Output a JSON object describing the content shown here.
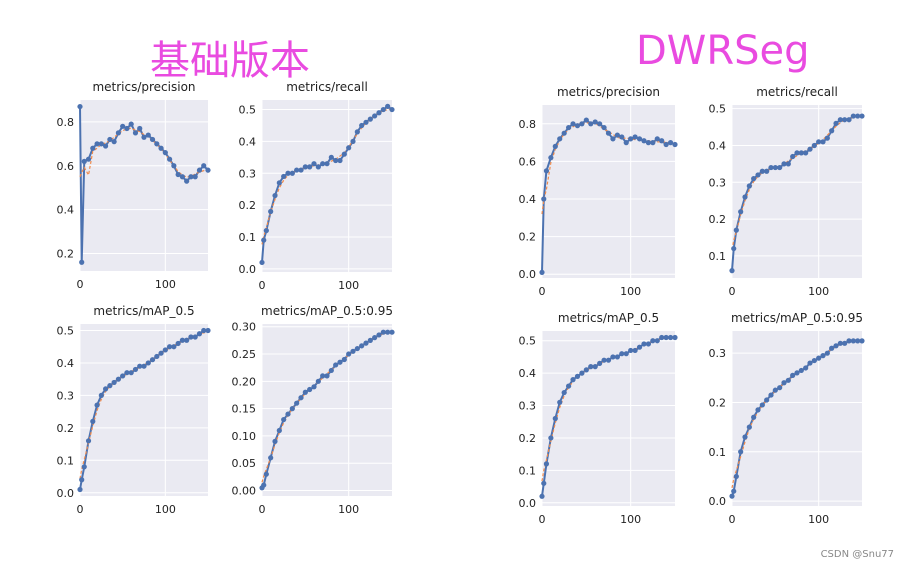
{
  "groups": [
    {
      "title": "基础版本"
    },
    {
      "title": "DWRSeg"
    }
  ],
  "watermark": "CSDN @Snu77",
  "colors": {
    "background": "#eaeaf2",
    "grid": "#ffffff",
    "series": "#4c72b0",
    "smooth": "#f08a4b",
    "title_accent": "#e94be0"
  },
  "chart_data": [
    {
      "type": "line",
      "group": "基础版本",
      "title": "metrics/precision",
      "xlim": [
        0,
        150
      ],
      "ylim": [
        0.12,
        0.9
      ],
      "xticks": [
        0,
        100
      ],
      "yticks": [
        0.2,
        0.4,
        0.6,
        0.8
      ],
      "ytick_labels": [
        "0.2",
        "0.4",
        "0.6",
        "0.8"
      ],
      "series": [
        {
          "x": [
            0,
            2,
            5,
            10,
            15,
            20,
            25,
            30,
            35,
            40,
            45,
            50,
            55,
            60,
            65,
            70,
            75,
            80,
            85,
            90,
            95,
            100,
            105,
            110,
            115,
            120,
            125,
            130,
            135,
            140,
            145,
            150
          ],
          "y": [
            0.87,
            0.16,
            0.62,
            0.63,
            0.68,
            0.7,
            0.7,
            0.69,
            0.72,
            0.71,
            0.75,
            0.78,
            0.77,
            0.79,
            0.75,
            0.77,
            0.73,
            0.74,
            0.72,
            0.7,
            0.68,
            0.66,
            0.63,
            0.6,
            0.56,
            0.55,
            0.53,
            0.55,
            0.55,
            0.58,
            0.6,
            0.58
          ]
        }
      ]
    },
    {
      "type": "line",
      "group": "基础版本",
      "title": "metrics/recall",
      "xlim": [
        0,
        150
      ],
      "ylim": [
        -0.01,
        0.53
      ],
      "xticks": [
        0,
        100
      ],
      "yticks": [
        0,
        0.1,
        0.2,
        0.3,
        0.4,
        0.5
      ],
      "ytick_labels": [
        "0.0",
        "0.1",
        "0.2",
        "0.3",
        "0.4",
        "0.5"
      ],
      "series": [
        {
          "x": [
            0,
            2,
            5,
            10,
            15,
            20,
            25,
            30,
            35,
            40,
            45,
            50,
            55,
            60,
            65,
            70,
            75,
            80,
            85,
            90,
            95,
            100,
            105,
            110,
            115,
            120,
            125,
            130,
            135,
            140,
            145,
            150
          ],
          "y": [
            0.02,
            0.09,
            0.12,
            0.18,
            0.23,
            0.27,
            0.29,
            0.3,
            0.3,
            0.31,
            0.31,
            0.32,
            0.32,
            0.33,
            0.32,
            0.33,
            0.33,
            0.35,
            0.34,
            0.34,
            0.36,
            0.38,
            0.4,
            0.43,
            0.45,
            0.46,
            0.47,
            0.48,
            0.49,
            0.5,
            0.51,
            0.5
          ]
        }
      ]
    },
    {
      "type": "line",
      "group": "基础版本",
      "title": "metrics/mAP_0.5",
      "xlim": [
        0,
        150
      ],
      "ylim": [
        -0.01,
        0.52
      ],
      "xticks": [
        0,
        100
      ],
      "yticks": [
        0,
        0.1,
        0.2,
        0.3,
        0.4,
        0.5
      ],
      "ytick_labels": [
        "0.0",
        "0.1",
        "0.2",
        "0.3",
        "0.4",
        "0.5"
      ],
      "series": [
        {
          "x": [
            0,
            2,
            5,
            10,
            15,
            20,
            25,
            30,
            35,
            40,
            45,
            50,
            55,
            60,
            65,
            70,
            75,
            80,
            85,
            90,
            95,
            100,
            105,
            110,
            115,
            120,
            125,
            130,
            135,
            140,
            145,
            150
          ],
          "y": [
            0.01,
            0.04,
            0.08,
            0.16,
            0.22,
            0.27,
            0.3,
            0.32,
            0.33,
            0.34,
            0.35,
            0.36,
            0.37,
            0.37,
            0.38,
            0.39,
            0.39,
            0.4,
            0.41,
            0.42,
            0.43,
            0.44,
            0.45,
            0.45,
            0.46,
            0.47,
            0.47,
            0.48,
            0.48,
            0.49,
            0.5,
            0.5
          ]
        }
      ]
    },
    {
      "type": "line",
      "group": "基础版本",
      "title": "metrics/mAP_0.5:0.95",
      "xlim": [
        0,
        150
      ],
      "ylim": [
        -0.01,
        0.305
      ],
      "xticks": [
        0,
        100
      ],
      "yticks": [
        0,
        0.05,
        0.1,
        0.15,
        0.2,
        0.25,
        0.3
      ],
      "ytick_labels": [
        "0.00",
        "0.05",
        "0.10",
        "0.15",
        "0.20",
        "0.25",
        "0.30"
      ],
      "series": [
        {
          "x": [
            0,
            2,
            5,
            10,
            15,
            20,
            25,
            30,
            35,
            40,
            45,
            50,
            55,
            60,
            65,
            70,
            75,
            80,
            85,
            90,
            95,
            100,
            105,
            110,
            115,
            120,
            125,
            130,
            135,
            140,
            145,
            150
          ],
          "y": [
            0.005,
            0.01,
            0.03,
            0.06,
            0.09,
            0.11,
            0.13,
            0.14,
            0.15,
            0.16,
            0.17,
            0.18,
            0.185,
            0.19,
            0.2,
            0.21,
            0.21,
            0.22,
            0.23,
            0.235,
            0.24,
            0.25,
            0.255,
            0.26,
            0.265,
            0.27,
            0.275,
            0.28,
            0.285,
            0.29,
            0.29,
            0.29
          ]
        }
      ]
    },
    {
      "type": "line",
      "group": "DWRSeg",
      "title": "metrics/precision",
      "xlim": [
        0,
        150
      ],
      "ylim": [
        -0.02,
        0.9
      ],
      "xticks": [
        0,
        100
      ],
      "yticks": [
        0,
        0.2,
        0.4,
        0.6,
        0.8
      ],
      "ytick_labels": [
        "0.0",
        "0.2",
        "0.4",
        "0.6",
        "0.8"
      ],
      "series": [
        {
          "x": [
            0,
            2,
            5,
            10,
            15,
            20,
            25,
            30,
            35,
            40,
            45,
            50,
            55,
            60,
            65,
            70,
            75,
            80,
            85,
            90,
            95,
            100,
            105,
            110,
            115,
            120,
            125,
            130,
            135,
            140,
            145,
            150
          ],
          "y": [
            0.01,
            0.4,
            0.55,
            0.62,
            0.68,
            0.72,
            0.75,
            0.78,
            0.8,
            0.79,
            0.8,
            0.82,
            0.8,
            0.81,
            0.8,
            0.78,
            0.75,
            0.72,
            0.74,
            0.73,
            0.7,
            0.72,
            0.73,
            0.72,
            0.71,
            0.7,
            0.7,
            0.72,
            0.71,
            0.69,
            0.7,
            0.69
          ]
        }
      ]
    },
    {
      "type": "line",
      "group": "DWRSeg",
      "title": "metrics/recall",
      "xlim": [
        0,
        150
      ],
      "ylim": [
        0.04,
        0.51
      ],
      "xticks": [
        0,
        100
      ],
      "yticks": [
        0.1,
        0.2,
        0.3,
        0.4,
        0.5
      ],
      "ytick_labels": [
        "0.1",
        "0.2",
        "0.3",
        "0.4",
        "0.5"
      ],
      "series": [
        {
          "x": [
            0,
            2,
            5,
            10,
            15,
            20,
            25,
            30,
            35,
            40,
            45,
            50,
            55,
            60,
            65,
            70,
            75,
            80,
            85,
            90,
            95,
            100,
            105,
            110,
            115,
            120,
            125,
            130,
            135,
            140,
            145,
            150
          ],
          "y": [
            0.06,
            0.12,
            0.17,
            0.22,
            0.26,
            0.29,
            0.31,
            0.32,
            0.33,
            0.33,
            0.34,
            0.34,
            0.34,
            0.35,
            0.35,
            0.37,
            0.38,
            0.38,
            0.38,
            0.39,
            0.4,
            0.41,
            0.41,
            0.42,
            0.44,
            0.46,
            0.47,
            0.47,
            0.47,
            0.48,
            0.48,
            0.48
          ]
        }
      ]
    },
    {
      "type": "line",
      "group": "DWRSeg",
      "title": "metrics/mAP_0.5",
      "xlim": [
        0,
        150
      ],
      "ylim": [
        -0.01,
        0.53
      ],
      "xticks": [
        0,
        100
      ],
      "yticks": [
        0,
        0.1,
        0.2,
        0.3,
        0.4,
        0.5
      ],
      "ytick_labels": [
        "0.0",
        "0.1",
        "0.2",
        "0.3",
        "0.4",
        "0.5"
      ],
      "series": [
        {
          "x": [
            0,
            2,
            5,
            10,
            15,
            20,
            25,
            30,
            35,
            40,
            45,
            50,
            55,
            60,
            65,
            70,
            75,
            80,
            85,
            90,
            95,
            100,
            105,
            110,
            115,
            120,
            125,
            130,
            135,
            140,
            145,
            150
          ],
          "y": [
            0.02,
            0.06,
            0.12,
            0.2,
            0.26,
            0.31,
            0.34,
            0.36,
            0.38,
            0.39,
            0.4,
            0.41,
            0.42,
            0.42,
            0.43,
            0.44,
            0.44,
            0.45,
            0.45,
            0.46,
            0.46,
            0.47,
            0.47,
            0.48,
            0.49,
            0.49,
            0.5,
            0.5,
            0.51,
            0.51,
            0.51,
            0.51
          ]
        }
      ]
    },
    {
      "type": "line",
      "group": "DWRSeg",
      "title": "metrics/mAP_0.5:0.95",
      "xlim": [
        0,
        150
      ],
      "ylim": [
        -0.01,
        0.345
      ],
      "xticks": [
        0,
        100
      ],
      "yticks": [
        0,
        0.1,
        0.2,
        0.3
      ],
      "ytick_labels": [
        "0.0",
        "0.1",
        "0.2",
        "0.3"
      ],
      "series": [
        {
          "x": [
            0,
            2,
            5,
            10,
            15,
            20,
            25,
            30,
            35,
            40,
            45,
            50,
            55,
            60,
            65,
            70,
            75,
            80,
            85,
            90,
            95,
            100,
            105,
            110,
            115,
            120,
            125,
            130,
            135,
            140,
            145,
            150
          ],
          "y": [
            0.01,
            0.02,
            0.05,
            0.1,
            0.13,
            0.15,
            0.17,
            0.185,
            0.195,
            0.205,
            0.215,
            0.225,
            0.23,
            0.24,
            0.245,
            0.255,
            0.26,
            0.265,
            0.27,
            0.28,
            0.285,
            0.29,
            0.295,
            0.3,
            0.31,
            0.315,
            0.32,
            0.32,
            0.325,
            0.325,
            0.325,
            0.325
          ]
        }
      ]
    }
  ]
}
